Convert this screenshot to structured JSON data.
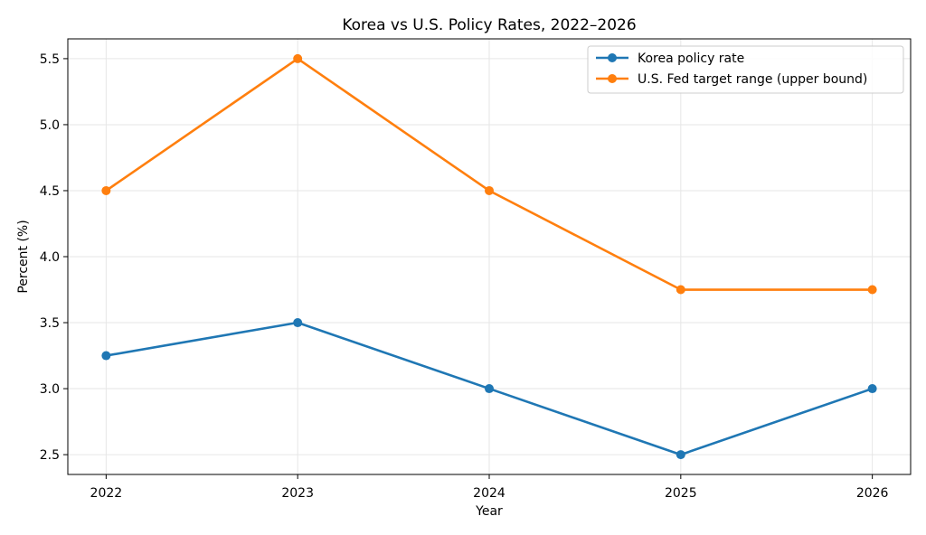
{
  "chart_data": {
    "type": "line",
    "title": "Korea vs U.S. Policy Rates, 2022–2026",
    "xlabel": "Year",
    "ylabel": "Percent (%)",
    "x": [
      2022,
      2023,
      2024,
      2025,
      2026
    ],
    "x_tick_labels": [
      "2022",
      "2023",
      "2024",
      "2025",
      "2026"
    ],
    "y_ticks": [
      2.5,
      3.0,
      3.5,
      4.0,
      4.5,
      5.0,
      5.5
    ],
    "y_tick_labels": [
      "2.5",
      "3.0",
      "3.5",
      "4.0",
      "4.5",
      "5.0",
      "5.5"
    ],
    "ylim": [
      2.35,
      5.65
    ],
    "grid": true,
    "legend_position": "top-right",
    "series": [
      {
        "name": "Korea policy rate",
        "color": "#1f77b4",
        "values": [
          3.25,
          3.5,
          3.0,
          2.5,
          3.0
        ]
      },
      {
        "name": "U.S. Fed target range (upper bound)",
        "color": "#ff7f0e",
        "values": [
          4.5,
          5.5,
          4.5,
          3.75,
          3.75
        ]
      }
    ]
  }
}
